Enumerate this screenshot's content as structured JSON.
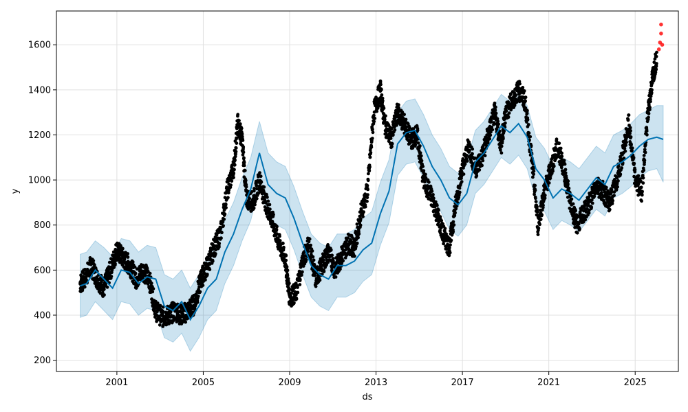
{
  "chart_data": {
    "type": "line",
    "title": "",
    "xlabel": "ds",
    "ylabel": "y",
    "xlim": [
      1998.2,
      2027.0
    ],
    "ylim": [
      150,
      1750
    ],
    "grid": true,
    "x_ticks": [
      2001,
      2005,
      2009,
      2013,
      2017,
      2021,
      2025
    ],
    "x_tick_labels": [
      "2001",
      "2005",
      "2009",
      "2013",
      "2017",
      "2021",
      "2025"
    ],
    "y_ticks": [
      200,
      400,
      600,
      800,
      1000,
      1200,
      1400,
      1600
    ],
    "y_tick_labels": [
      "200",
      "400",
      "600",
      "800",
      "1000",
      "1200",
      "1400",
      "1600"
    ],
    "colors": {
      "forecast_line": "#0072B2",
      "uncertainty_band": "#0072B2",
      "observations": "#000000",
      "highlighted_points": "#ff0000",
      "grid": "#e0e0e0"
    },
    "series": [
      {
        "kind": "forecast",
        "x": [
          1999.3,
          1999.6,
          2000.0,
          2000.4,
          2000.8,
          2001.2,
          2001.6,
          2002.0,
          2002.4,
          2002.8,
          2003.2,
          2003.6,
          2004.0,
          2004.4,
          2004.8,
          2005.2,
          2005.6,
          2006.0,
          2006.4,
          2006.8,
          2007.2,
          2007.6,
          2008.0,
          2008.4,
          2008.8,
          2009.2,
          2009.6,
          2010.0,
          2010.4,
          2010.8,
          2011.2,
          2011.6,
          2012.0,
          2012.4,
          2012.8,
          2013.2,
          2013.6,
          2014.0,
          2014.4,
          2014.8,
          2015.2,
          2015.6,
          2016.0,
          2016.4,
          2016.8,
          2017.2,
          2017.6,
          2018.0,
          2018.4,
          2018.8,
          2019.2,
          2019.6,
          2020.0,
          2020.4,
          2020.8,
          2021.2,
          2021.6,
          2022.0,
          2022.4,
          2022.8,
          2023.2,
          2023.6,
          2024.0,
          2024.4,
          2024.8,
          2025.2,
          2025.6,
          2026.0,
          2026.3
        ],
        "y": [
          530,
          540,
          600,
          560,
          520,
          600,
          590,
          540,
          570,
          560,
          440,
          420,
          460,
          380,
          440,
          520,
          560,
          680,
          760,
          870,
          960,
          1120,
          980,
          940,
          920,
          830,
          720,
          620,
          580,
          560,
          620,
          620,
          640,
          690,
          720,
          850,
          950,
          1160,
          1210,
          1220,
          1150,
          1060,
          1000,
          920,
          890,
          940,
          1080,
          1120,
          1180,
          1240,
          1210,
          1250,
          1190,
          1050,
          1000,
          920,
          960,
          940,
          910,
          960,
          1010,
          980,
          1060,
          1080,
          1110,
          1150,
          1180,
          1190,
          1180
        ]
      },
      {
        "kind": "uncertainty_upper",
        "x": [
          1999.3,
          1999.6,
          2000.0,
          2000.4,
          2000.8,
          2001.2,
          2001.6,
          2002.0,
          2002.4,
          2002.8,
          2003.2,
          2003.6,
          2004.0,
          2004.4,
          2004.8,
          2005.2,
          2005.6,
          2006.0,
          2006.4,
          2006.8,
          2007.2,
          2007.6,
          2008.0,
          2008.4,
          2008.8,
          2009.2,
          2009.6,
          2010.0,
          2010.4,
          2010.8,
          2011.2,
          2011.6,
          2012.0,
          2012.4,
          2012.8,
          2013.2,
          2013.6,
          2014.0,
          2014.4,
          2014.8,
          2015.2,
          2015.6,
          2016.0,
          2016.4,
          2016.8,
          2017.2,
          2017.6,
          2018.0,
          2018.4,
          2018.8,
          2019.2,
          2019.6,
          2020.0,
          2020.4,
          2020.8,
          2021.2,
          2021.6,
          2022.0,
          2022.4,
          2022.8,
          2023.2,
          2023.6,
          2024.0,
          2024.4,
          2024.8,
          2025.2,
          2025.6,
          2026.0,
          2026.3
        ],
        "y": [
          670,
          680,
          730,
          700,
          660,
          740,
          730,
          680,
          710,
          700,
          580,
          560,
          600,
          520,
          580,
          660,
          700,
          820,
          900,
          1010,
          1100,
          1260,
          1120,
          1080,
          1060,
          970,
          860,
          760,
          720,
          700,
          760,
          760,
          780,
          830,
          860,
          990,
          1090,
          1300,
          1350,
          1360,
          1290,
          1200,
          1140,
          1060,
          1030,
          1080,
          1220,
          1260,
          1320,
          1380,
          1350,
          1390,
          1330,
          1190,
          1140,
          1060,
          1100,
          1080,
          1050,
          1100,
          1150,
          1120,
          1200,
          1220,
          1250,
          1290,
          1310,
          1330,
          1330
        ]
      },
      {
        "kind": "uncertainty_lower",
        "x": [
          1999.3,
          1999.6,
          2000.0,
          2000.4,
          2000.8,
          2001.2,
          2001.6,
          2002.0,
          2002.4,
          2002.8,
          2003.2,
          2003.6,
          2004.0,
          2004.4,
          2004.8,
          2005.2,
          2005.6,
          2006.0,
          2006.4,
          2006.8,
          2007.2,
          2007.6,
          2008.0,
          2008.4,
          2008.8,
          2009.2,
          2009.6,
          2010.0,
          2010.4,
          2010.8,
          2011.2,
          2011.6,
          2012.0,
          2012.4,
          2012.8,
          2013.2,
          2013.6,
          2014.0,
          2014.4,
          2014.8,
          2015.2,
          2015.6,
          2016.0,
          2016.4,
          2016.8,
          2017.2,
          2017.6,
          2018.0,
          2018.4,
          2018.8,
          2019.2,
          2019.6,
          2020.0,
          2020.4,
          2020.8,
          2021.2,
          2021.6,
          2022.0,
          2022.4,
          2022.8,
          2023.2,
          2023.6,
          2024.0,
          2024.4,
          2024.8,
          2025.2,
          2025.6,
          2026.0,
          2026.3
        ],
        "y": [
          390,
          400,
          460,
          420,
          380,
          460,
          450,
          400,
          430,
          420,
          300,
          280,
          320,
          240,
          300,
          380,
          420,
          540,
          620,
          730,
          820,
          980,
          840,
          800,
          780,
          690,
          580,
          480,
          440,
          420,
          480,
          480,
          500,
          550,
          580,
          710,
          810,
          1020,
          1070,
          1080,
          1010,
          920,
          860,
          780,
          750,
          800,
          940,
          980,
          1040,
          1100,
          1070,
          1110,
          1050,
          910,
          860,
          780,
          820,
          800,
          770,
          820,
          870,
          840,
          920,
          940,
          970,
          1010,
          1040,
          1050,
          990
        ]
      },
      {
        "kind": "observations",
        "x": [
          1999.3,
          1999.5,
          1999.8,
          2000.1,
          2000.4,
          2000.7,
          2001.0,
          2001.3,
          2001.6,
          2001.9,
          2002.2,
          2002.5,
          2002.8,
          2003.1,
          2003.4,
          2003.7,
          2004.0,
          2004.3,
          2004.6,
          2004.9,
          2005.2,
          2005.5,
          2005.8,
          2006.1,
          2006.4,
          2006.6,
          2006.8,
          2007.0,
          2007.3,
          2007.6,
          2007.9,
          2008.2,
          2008.5,
          2008.8,
          2009.0,
          2009.3,
          2009.6,
          2009.9,
          2010.2,
          2010.5,
          2010.8,
          2011.1,
          2011.4,
          2011.7,
          2012.0,
          2012.3,
          2012.6,
          2012.9,
          2013.2,
          2013.4,
          2013.7,
          2014.0,
          2014.3,
          2014.6,
          2014.9,
          2015.2,
          2015.5,
          2015.8,
          2016.1,
          2016.4,
          2016.7,
          2017.0,
          2017.3,
          2017.6,
          2017.9,
          2018.2,
          2018.5,
          2018.8,
          2019.0,
          2019.3,
          2019.6,
          2019.9,
          2020.2,
          2020.5,
          2020.8,
          2021.1,
          2021.4,
          2021.7,
          2022.0,
          2022.3,
          2022.6,
          2022.9,
          2023.2,
          2023.5,
          2023.8,
          2024.1,
          2024.4,
          2024.7,
          2025.0,
          2025.3,
          2025.6,
          2025.8,
          2026.0
        ],
        "y": [
          540,
          560,
          620,
          560,
          520,
          600,
          690,
          650,
          620,
          560,
          600,
          560,
          420,
          390,
          400,
          420,
          400,
          420,
          450,
          560,
          620,
          700,
          760,
          950,
          1050,
          1250,
          1180,
          920,
          900,
          1000,
          900,
          820,
          720,
          650,
          480,
          500,
          640,
          720,
          560,
          620,
          680,
          600,
          660,
          720,
          700,
          850,
          950,
          1300,
          1400,
          1250,
          1180,
          1300,
          1250,
          1180,
          1200,
          1000,
          940,
          860,
          760,
          700,
          900,
          1050,
          1150,
          1050,
          1100,
          1200,
          1300,
          1150,
          1300,
          1350,
          1400,
          1350,
          1100,
          800,
          950,
          1050,
          1150,
          1050,
          900,
          800,
          850,
          900,
          980,
          950,
          900,
          980,
          1100,
          1250,
          1000,
          950,
          1300,
          1450,
          1550
        ]
      },
      {
        "kind": "highlighted",
        "x": [
          2026.1,
          2026.15,
          2026.2,
          2026.2,
          2026.25
        ],
        "y": [
          1580,
          1610,
          1650,
          1690,
          1600
        ]
      }
    ]
  }
}
